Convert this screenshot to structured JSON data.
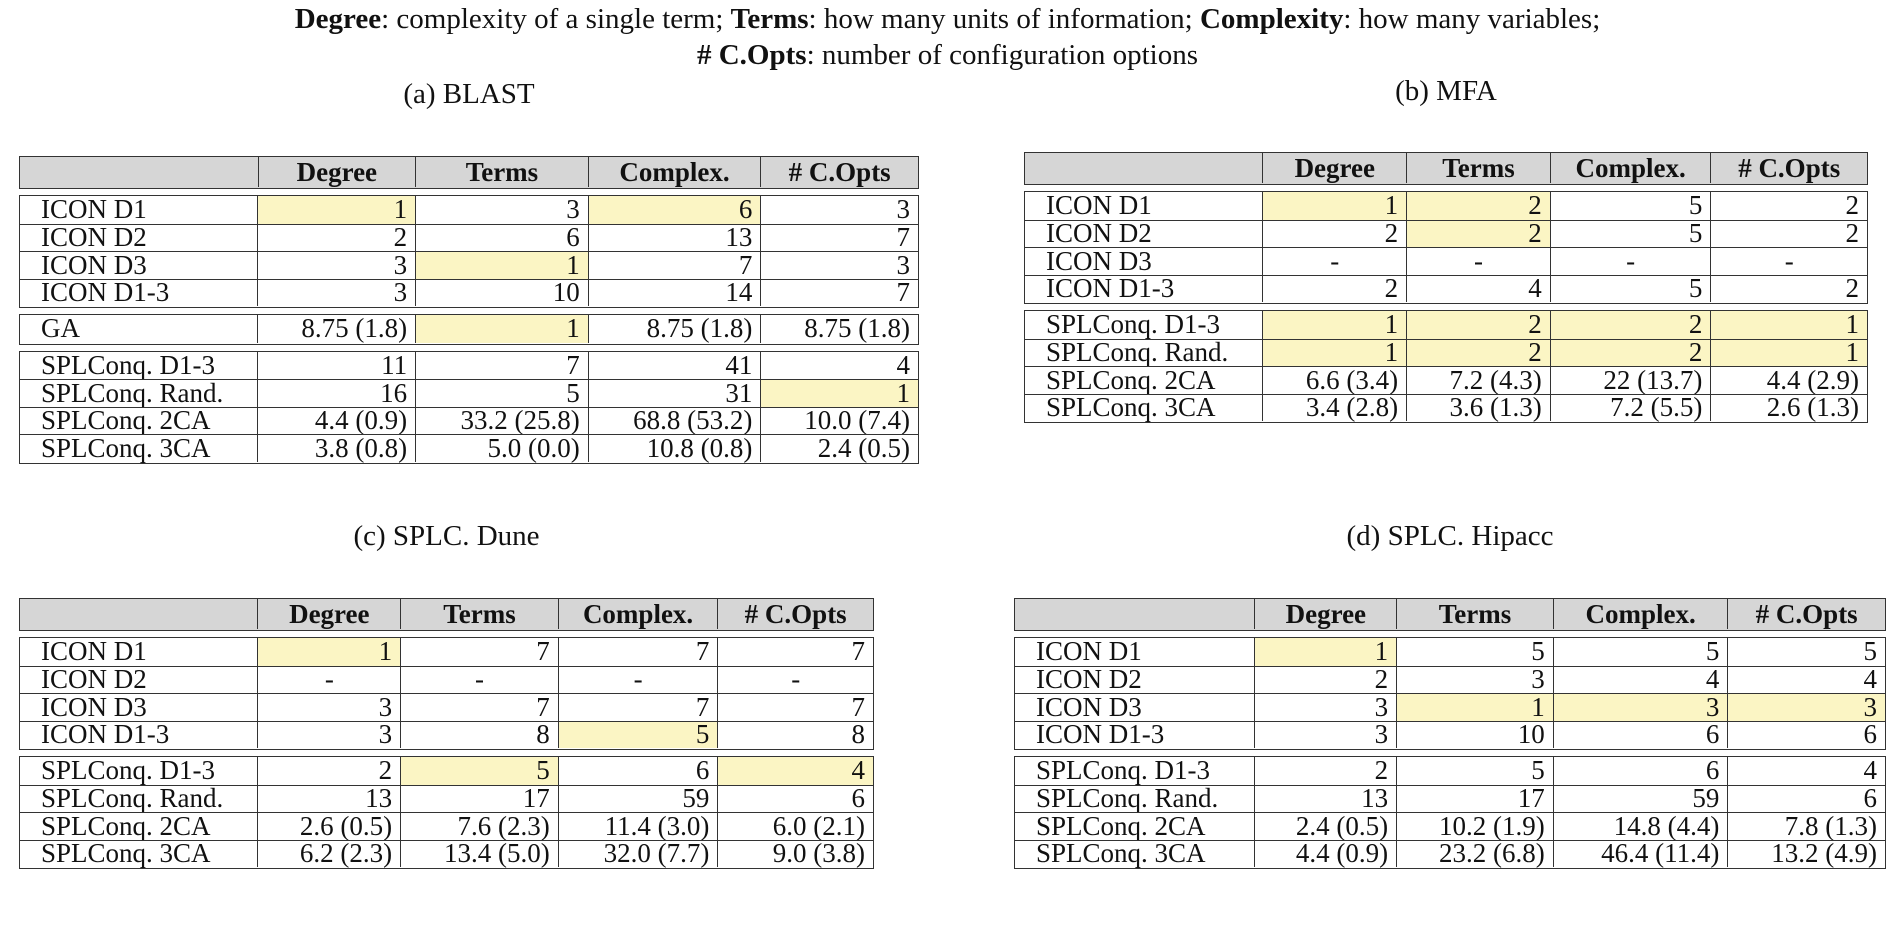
{
  "legend": {
    "degree_term": "Degree",
    "degree_desc": ": complexity of a single term; ",
    "terms_term": "Terms",
    "terms_desc": ": how many units of information; ",
    "complexity_term": "Complexity",
    "complexity_desc": ": how many variables;",
    "copts_term": "# C.Opts",
    "copts_desc": ": number of configuration options"
  },
  "columns": [
    "",
    "Degree",
    "Terms",
    "Complex.",
    "# C.Opts"
  ],
  "highlight_color": "#fbf5c4",
  "header_color": "#d6d6d6",
  "panels": [
    {
      "caption": "(a) BLAST",
      "groups": [
        [
          {
            "label": "ICON D1",
            "cells": [
              "1",
              "3",
              "6",
              "3"
            ],
            "hl": [
              true,
              false,
              true,
              false
            ]
          },
          {
            "label": "ICON D2",
            "cells": [
              "2",
              "6",
              "13",
              "7"
            ],
            "hl": [
              false,
              false,
              false,
              false
            ]
          },
          {
            "label": "ICON D3",
            "cells": [
              "3",
              "1",
              "7",
              "3"
            ],
            "hl": [
              false,
              true,
              false,
              false
            ]
          },
          {
            "label": "ICON D1-3",
            "cells": [
              "3",
              "10",
              "14",
              "7"
            ],
            "hl": [
              false,
              false,
              false,
              false
            ]
          }
        ],
        [
          {
            "label": "GA",
            "cells": [
              "8.75 (1.8)",
              "1",
              "8.75 (1.8)",
              "8.75 (1.8)"
            ],
            "hl": [
              false,
              true,
              false,
              false
            ]
          }
        ],
        [
          {
            "label": "SPLConq. D1-3",
            "cells": [
              "11",
              "7",
              "41",
              "4"
            ],
            "hl": [
              false,
              false,
              false,
              false
            ]
          },
          {
            "label": "SPLConq. Rand.",
            "cells": [
              "16",
              "5",
              "31",
              "1"
            ],
            "hl": [
              false,
              false,
              false,
              true
            ]
          },
          {
            "label": "SPLConq. 2CA",
            "cells": [
              "4.4 (0.9)",
              "33.2 (25.8)",
              "68.8 (53.2)",
              "10.0 (7.4)"
            ],
            "hl": [
              false,
              false,
              false,
              false
            ]
          },
          {
            "label": "SPLConq. 3CA",
            "cells": [
              "3.8 (0.8)",
              "5.0 (0.0)",
              "10.8 (0.8)",
              "2.4 (0.5)"
            ],
            "hl": [
              false,
              false,
              false,
              false
            ]
          }
        ]
      ]
    },
    {
      "caption": "(b) MFA",
      "groups": [
        [
          {
            "label": "ICON D1",
            "cells": [
              "1",
              "2",
              "5",
              "2"
            ],
            "hl": [
              true,
              true,
              false,
              false
            ]
          },
          {
            "label": "ICON D2",
            "cells": [
              "2",
              "2",
              "5",
              "2"
            ],
            "hl": [
              false,
              true,
              false,
              false
            ]
          },
          {
            "label": "ICON D3",
            "cells": [
              "-",
              "-",
              "-",
              "-"
            ],
            "hl": [
              false,
              false,
              false,
              false
            ]
          },
          {
            "label": "ICON D1-3",
            "cells": [
              "2",
              "4",
              "5",
              "2"
            ],
            "hl": [
              false,
              false,
              false,
              false
            ]
          }
        ],
        [
          {
            "label": "SPLConq. D1-3",
            "cells": [
              "1",
              "2",
              "2",
              "1"
            ],
            "hl": [
              true,
              true,
              true,
              true
            ]
          },
          {
            "label": "SPLConq. Rand.",
            "cells": [
              "1",
              "2",
              "2",
              "1"
            ],
            "hl": [
              true,
              true,
              true,
              true
            ]
          },
          {
            "label": "SPLConq. 2CA",
            "cells": [
              "6.6 (3.4)",
              "7.2 (4.3)",
              "22 (13.7)",
              "4.4 (2.9)"
            ],
            "hl": [
              false,
              false,
              false,
              false
            ]
          },
          {
            "label": "SPLConq. 3CA",
            "cells": [
              "3.4 (2.8)",
              "3.6 (1.3)",
              "7.2 (5.5)",
              "2.6 (1.3)"
            ],
            "hl": [
              false,
              false,
              false,
              false
            ]
          }
        ]
      ]
    },
    {
      "caption": "(c) SPLC. Dune",
      "groups": [
        [
          {
            "label": "ICON D1",
            "cells": [
              "1",
              "7",
              "7",
              "7"
            ],
            "hl": [
              true,
              false,
              false,
              false
            ]
          },
          {
            "label": "ICON D2",
            "cells": [
              "-",
              "-",
              "-",
              "-"
            ],
            "hl": [
              false,
              false,
              false,
              false
            ]
          },
          {
            "label": "ICON D3",
            "cells": [
              "3",
              "7",
              "7",
              "7"
            ],
            "hl": [
              false,
              false,
              false,
              false
            ]
          },
          {
            "label": "ICON D1-3",
            "cells": [
              "3",
              "8",
              "5",
              "8"
            ],
            "hl": [
              false,
              false,
              true,
              false
            ]
          }
        ],
        [
          {
            "label": "SPLConq. D1-3",
            "cells": [
              "2",
              "5",
              "6",
              "4"
            ],
            "hl": [
              false,
              true,
              false,
              true
            ]
          },
          {
            "label": "SPLConq. Rand.",
            "cells": [
              "13",
              "17",
              "59",
              "6"
            ],
            "hl": [
              false,
              false,
              false,
              false
            ]
          },
          {
            "label": "SPLConq. 2CA",
            "cells": [
              "2.6 (0.5)",
              "7.6 (2.3)",
              "11.4 (3.0)",
              "6.0 (2.1)"
            ],
            "hl": [
              false,
              false,
              false,
              false
            ]
          },
          {
            "label": "SPLConq. 3CA",
            "cells": [
              "6.2 (2.3)",
              "13.4 (5.0)",
              "32.0 (7.7)",
              "9.0 (3.8)"
            ],
            "hl": [
              false,
              false,
              false,
              false
            ]
          }
        ]
      ]
    },
    {
      "caption": "(d) SPLC. Hipacc",
      "groups": [
        [
          {
            "label": "ICON D1",
            "cells": [
              "1",
              "5",
              "5",
              "5"
            ],
            "hl": [
              true,
              false,
              false,
              false
            ]
          },
          {
            "label": "ICON D2",
            "cells": [
              "2",
              "3",
              "4",
              "4"
            ],
            "hl": [
              false,
              false,
              false,
              false
            ]
          },
          {
            "label": "ICON D3",
            "cells": [
              "3",
              "1",
              "3",
              "3"
            ],
            "hl": [
              false,
              true,
              true,
              true
            ]
          },
          {
            "label": "ICON D1-3",
            "cells": [
              "3",
              "10",
              "6",
              "6"
            ],
            "hl": [
              false,
              false,
              false,
              false
            ]
          }
        ],
        [
          {
            "label": "SPLConq. D1-3",
            "cells": [
              "2",
              "5",
              "6",
              "4"
            ],
            "hl": [
              false,
              false,
              false,
              false
            ]
          },
          {
            "label": "SPLConq. Rand.",
            "cells": [
              "13",
              "17",
              "59",
              "6"
            ],
            "hl": [
              false,
              false,
              false,
              false
            ]
          },
          {
            "label": "SPLConq. 2CA",
            "cells": [
              "2.4 (0.5)",
              "10.2 (1.9)",
              "14.8 (4.4)",
              "7.8 (1.3)"
            ],
            "hl": [
              false,
              false,
              false,
              false
            ]
          },
          {
            "label": "SPLConq. 3CA",
            "cells": [
              "4.4 (0.9)",
              "23.2 (6.8)",
              "46.4 (11.4)",
              "13.2 (4.9)"
            ],
            "hl": [
              false,
              false,
              false,
              false
            ]
          }
        ]
      ]
    }
  ]
}
